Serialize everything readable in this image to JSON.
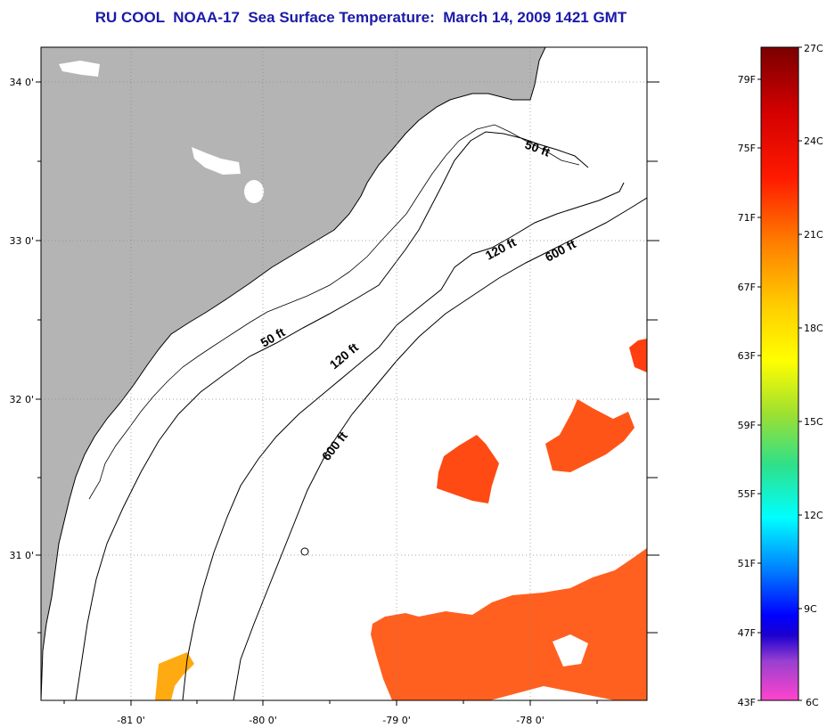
{
  "title": "RU COOL  NOAA-17  Sea Surface Temperature:  March 14, 2009 1421 GMT",
  "map": {
    "lon_labels": [
      "-81 0'",
      "-80 0'",
      "-79 0'",
      "-78 0'"
    ],
    "lat_labels": [
      "34 0'",
      "33 0'",
      "32 0'",
      "31 0'"
    ],
    "land_color": "#b4b4b4",
    "contour_labels": [
      "50 ft",
      "120 ft",
      "600 ft",
      "50 ft",
      "120 ft",
      "600 ft"
    ]
  },
  "colorbar": {
    "fahrenheit_labels": [
      "79F",
      "75F",
      "71F",
      "67F",
      "63F",
      "59F",
      "55F",
      "51F",
      "47F",
      "43F"
    ],
    "celsius_labels": [
      "27C",
      "24C",
      "21C",
      "18C",
      "15C",
      "12C",
      "9C",
      "6C"
    ]
  }
}
